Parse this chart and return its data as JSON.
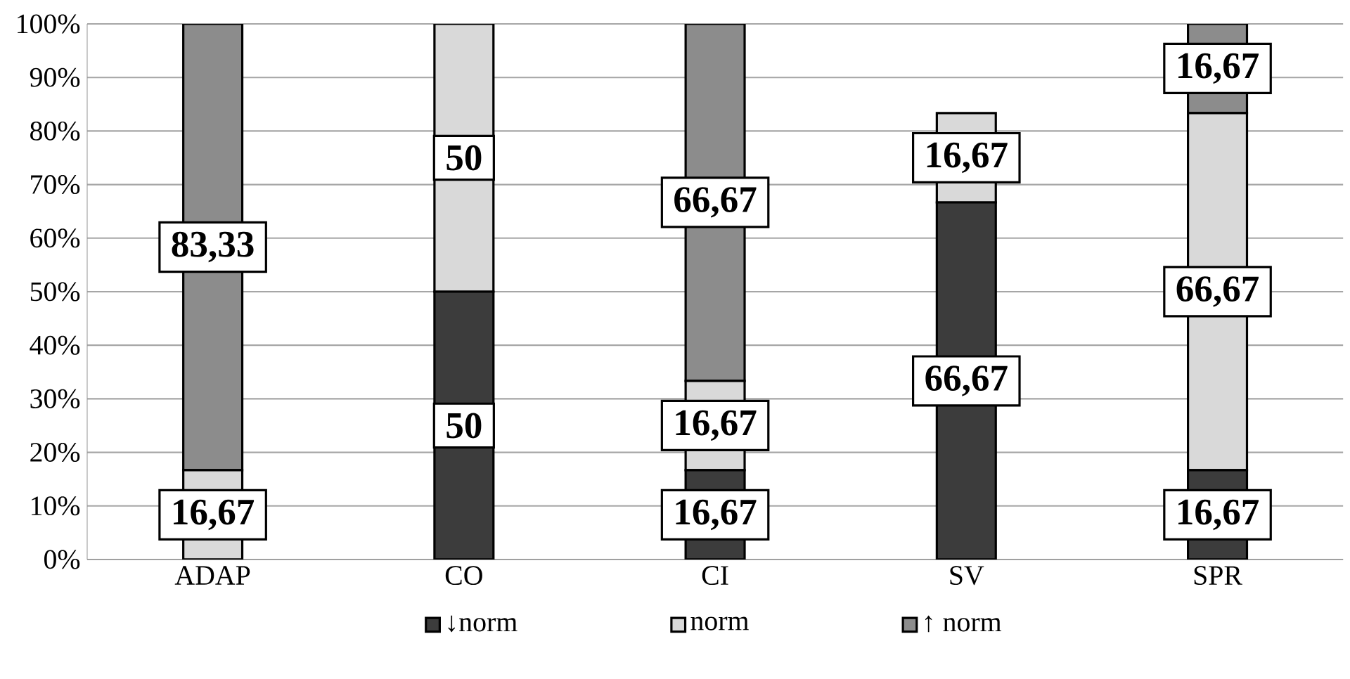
{
  "chart_data": {
    "type": "bar",
    "stacked": true,
    "categories": [
      "ADAP",
      "CO",
      "CI",
      "SV",
      "SPR"
    ],
    "series": [
      {
        "name": "↓norm",
        "color": "#3c3c3c",
        "values": [
          0,
          50,
          16.67,
          66.67,
          16.67
        ],
        "value_labels": [
          null,
          "50",
          "16,67",
          "66,67",
          "16,67"
        ]
      },
      {
        "name": "norm",
        "color": "#d9d9d9",
        "values": [
          16.67,
          50,
          16.67,
          16.67,
          66.67
        ],
        "value_labels": [
          "16,67",
          "50",
          "16,67",
          "16,67",
          "66,67"
        ]
      },
      {
        "name": "↑ norm",
        "color": "#8c8c8c",
        "values": [
          83.33,
          0,
          66.67,
          0,
          16.67
        ],
        "value_labels": [
          "83,33",
          null,
          "66,67",
          null,
          "16,67"
        ]
      }
    ],
    "ylim": [
      0,
      100
    ],
    "yticks": [
      {
        "value": 0,
        "label": "0%"
      },
      {
        "value": 10,
        "label": "10%"
      },
      {
        "value": 20,
        "label": "20%"
      },
      {
        "value": 30,
        "label": "30%"
      },
      {
        "value": 40,
        "label": "40%"
      },
      {
        "value": 50,
        "label": "50%"
      },
      {
        "value": 60,
        "label": "60%"
      },
      {
        "value": 70,
        "label": "70%"
      },
      {
        "value": 80,
        "label": "80%"
      },
      {
        "value": 90,
        "label": "90%"
      },
      {
        "value": 100,
        "label": "100%"
      }
    ],
    "grid": "y",
    "legend": "bottom"
  }
}
